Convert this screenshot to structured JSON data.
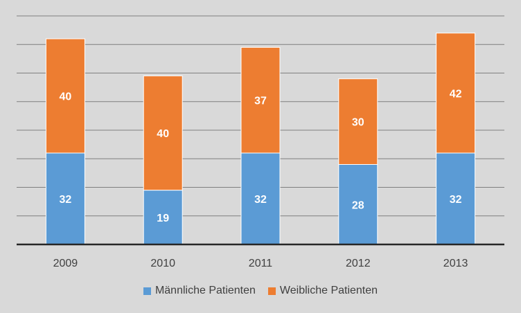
{
  "chart_data": {
    "type": "bar",
    "stacked": true,
    "categories": [
      "2009",
      "2010",
      "2011",
      "2012",
      "2013"
    ],
    "series": [
      {
        "name": "Männliche Patienten",
        "values": [
          32,
          19,
          32,
          28,
          32
        ],
        "color": "#5b9bd5"
      },
      {
        "name": "Weibliche Patienten",
        "values": [
          40,
          40,
          37,
          30,
          42
        ],
        "color": "#ed7d31"
      }
    ],
    "title": "",
    "xlabel": "",
    "ylabel": "",
    "ylim": [
      0,
      80
    ],
    "grid": true,
    "y_tick_labels_shown": false,
    "legend_position": "bottom",
    "data_labels": true,
    "background_color": "#d9d9d9",
    "gridline_color": "#7f7f7f",
    "axis_color": "#262626",
    "label_color": "#404040"
  }
}
